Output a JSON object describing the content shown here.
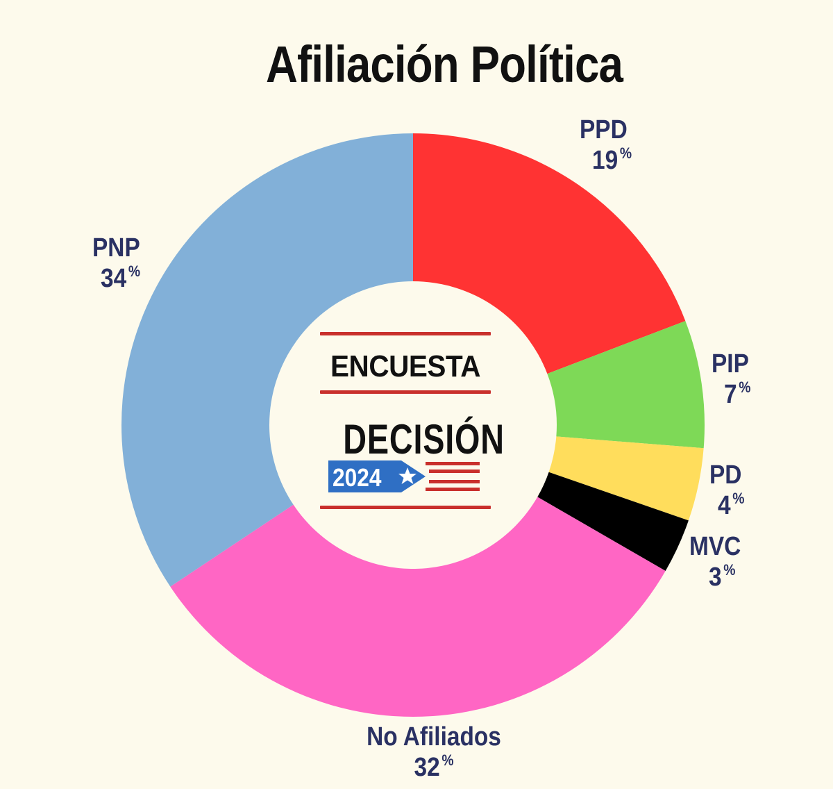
{
  "title": "Afiliación Política",
  "logo": {
    "line1": "ENCUESTA",
    "line2": "DECISIÓN",
    "year": "2024",
    "star_icon": "star-icon",
    "colors": {
      "red": "#c9302c",
      "blue": "#2f6fc4",
      "text": "#111111"
    }
  },
  "chart_data": {
    "type": "pie",
    "donut": true,
    "title": "Afiliación Política",
    "unit": "%",
    "slices": [
      {
        "name": "PPD",
        "value": 19,
        "color": "#ff3333"
      },
      {
        "name": "PIP",
        "value": 7,
        "color": "#7ed957"
      },
      {
        "name": "PD",
        "value": 4,
        "color": "#ffdd5c"
      },
      {
        "name": "MVC",
        "value": 3,
        "color": "#000000"
      },
      {
        "name": "No Afiliados",
        "value": 32,
        "color": "#ff66c4"
      },
      {
        "name": "PNP",
        "value": 34,
        "color": "#82b0d8"
      }
    ]
  }
}
